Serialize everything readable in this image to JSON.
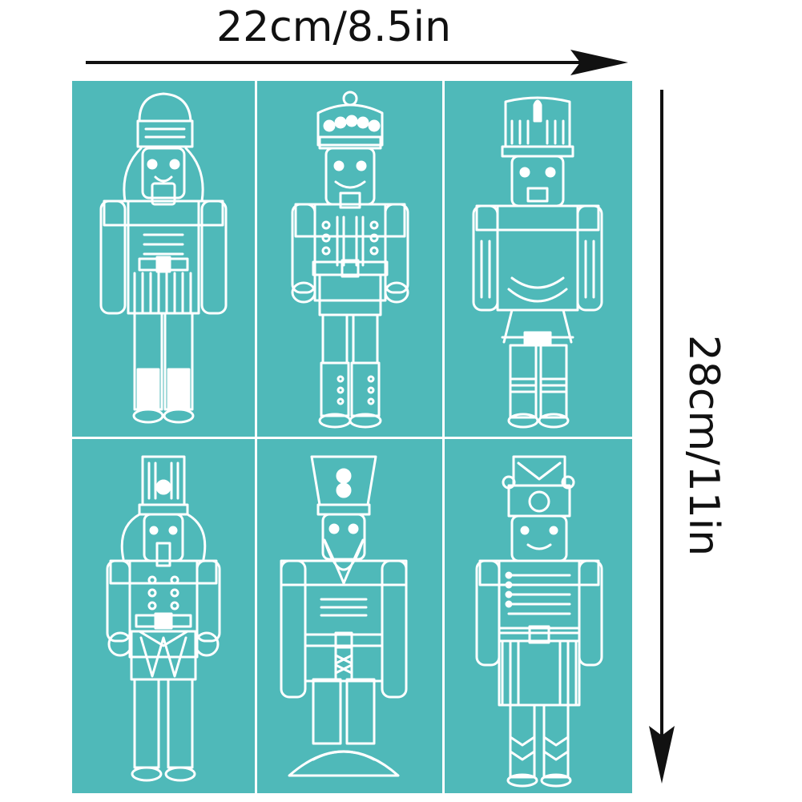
{
  "dimensions": {
    "width_label": "22cm/8.5in",
    "height_label": "28cm/11in"
  },
  "stencil": {
    "background_color": "#4fb9b9",
    "line_color": "#ffffff",
    "columns": 3,
    "rows": 2,
    "figures": [
      {
        "name": "nutcracker-round-hat"
      },
      {
        "name": "nutcracker-crown"
      },
      {
        "name": "nutcracker-plumed-hat"
      },
      {
        "name": "nutcracker-drummer"
      },
      {
        "name": "nutcracker-bearded-tall-hat"
      },
      {
        "name": "nutcracker-helmet"
      }
    ]
  }
}
